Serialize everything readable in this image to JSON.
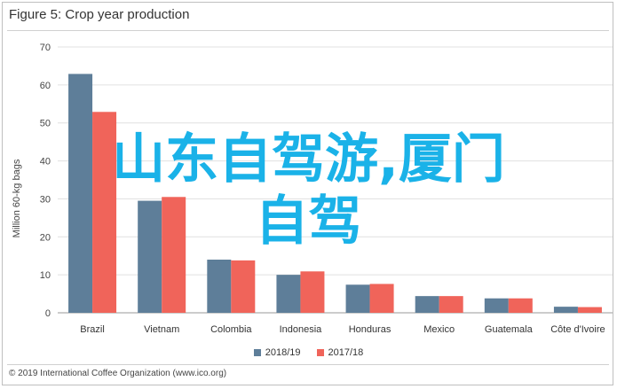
{
  "figure_title": "Figure 5: Crop year production",
  "footer": "© 2019 International Coffee Organization (www.ico.org)",
  "overlay": {
    "line1": "山东自驾游,厦门",
    "line2": "自驾"
  },
  "colors": {
    "series_2018_19": "#5e7e99",
    "series_2017_18": "#f0645a",
    "overlay": "#1ab2e8"
  },
  "chart_data": {
    "type": "bar",
    "title": "Figure 5: Crop year production",
    "ylabel": "Million 60-kg bags",
    "xlabel": "",
    "ylim": [
      0,
      70
    ],
    "yticks": [
      0,
      10,
      20,
      30,
      40,
      50,
      60,
      70
    ],
    "categories": [
      "Brazil",
      "Vietnam",
      "Colombia",
      "Indonesia",
      "Honduras",
      "Mexico",
      "Guatemala",
      "Côte d'Ivoire"
    ],
    "series": [
      {
        "name": "2018/19",
        "values": [
          62.9,
          29.5,
          14.0,
          10.0,
          7.4,
          4.4,
          3.8,
          1.6
        ]
      },
      {
        "name": "2017/18",
        "values": [
          52.9,
          30.5,
          13.8,
          10.9,
          7.6,
          4.4,
          3.8,
          1.5
        ]
      }
    ],
    "legend": "bottom",
    "grid": true
  }
}
